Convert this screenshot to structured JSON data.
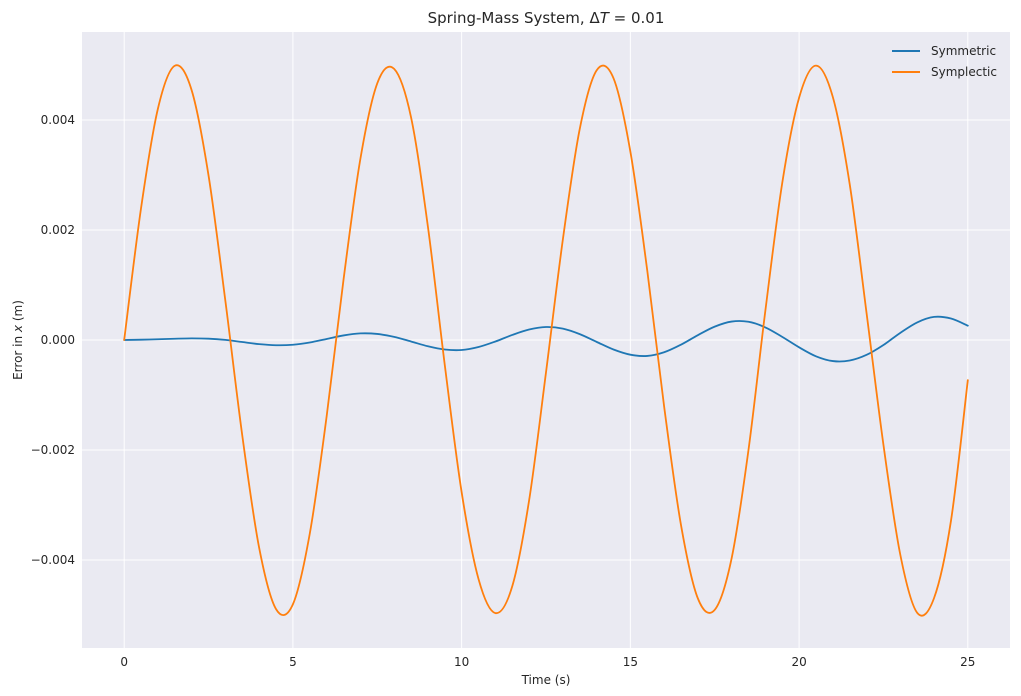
{
  "chart_data": {
    "type": "line",
    "title": "Spring-Mass System, ΔT = 0.01",
    "title_parts": {
      "prefix": "Spring-Mass System, ",
      "delta": "Δ",
      "var": "T",
      "suffix": " = 0.01"
    },
    "xlabel": "Time (s)",
    "ylabel": "Error in x (m)",
    "ylabel_parts": {
      "prefix": "Error in ",
      "var": "x",
      "suffix": " (m)"
    },
    "xlim": [
      -1.25,
      26.25
    ],
    "ylim": [
      -0.0056,
      0.0056
    ],
    "xticks": [
      0,
      5,
      10,
      15,
      20,
      25
    ],
    "xtick_labels": [
      "0",
      "5",
      "10",
      "15",
      "20",
      "25"
    ],
    "yticks": [
      -0.004,
      -0.002,
      0.0,
      0.002,
      0.004
    ],
    "ytick_labels": [
      "−0.004",
      "−0.002",
      "0.000",
      "0.002",
      "0.004"
    ],
    "grid": true,
    "legend_position": "top-right",
    "background": "#eaeaf2",
    "grid_color": "#ffffff",
    "x": [
      0,
      0.5,
      1,
      1.5,
      2,
      2.5,
      3,
      3.5,
      4,
      4.5,
      5,
      5.5,
      6,
      6.5,
      7,
      7.5,
      8,
      8.5,
      9,
      9.5,
      10,
      10.5,
      11,
      11.5,
      12,
      12.5,
      13,
      13.5,
      14,
      14.5,
      15,
      15.5,
      16,
      16.5,
      17,
      17.5,
      18,
      18.5,
      19,
      19.5,
      20,
      20.5,
      21,
      21.5,
      22,
      22.5,
      23,
      23.5,
      24,
      24.5,
      25
    ],
    "series": [
      {
        "name": "Symmetric",
        "color": "#1f77b4",
        "values": [
          0.0,
          6e-06,
          1.4e-05,
          2.3e-05,
          2.9e-05,
          2.4e-05,
          2e-06,
          -3.7e-05,
          -7.5e-05,
          -9.5e-05,
          -8.6e-05,
          -4.5e-05,
          1.9e-05,
          8.3e-05,
          0.00012,
          0.00011,
          5.7e-05,
          -2.7e-05,
          -0.000114,
          -0.000173,
          -0.000182,
          -0.000127,
          -2.7e-05,
          9.2e-05,
          0.000191,
          0.000236,
          0.000207,
          0.000107,
          -3.4e-05,
          -0.000173,
          -0.000267,
          -0.00029,
          -0.000223,
          -8.5e-05,
          8.8e-05,
          0.000243,
          0.000335,
          0.000331,
          0.000229,
          5.7e-05,
          -0.000133,
          -0.000296,
          -0.000383,
          -0.000373,
          -0.00027,
          -9e-05,
          0.00013,
          0.00032,
          0.00042,
          0.00039,
          0.00026
        ]
      },
      {
        "name": "Symplectic",
        "color": "#ff7f0e",
        "values": [
          0.0,
          0.002397,
          0.004207,
          0.004986,
          0.00454,
          0.00299,
          0.000704,
          -0.001738,
          -0.003779,
          -0.004893,
          -0.004804,
          -0.00352,
          -0.001387,
          0.001098,
          0.003295,
          0.004668,
          0.004929,
          0.004051,
          0.002064,
          -0.000452,
          -0.002767,
          -0.004345,
          -0.004965,
          -0.004478,
          -0.002914,
          -0.000589,
          0.001829,
          0.003837,
          0.004902,
          0.00476,
          0.003426,
          0.001265,
          -0.001206,
          -0.003362,
          -0.004698,
          -0.004905,
          -0.003971,
          -0.002001,
          0.000531,
          0.002853,
          0.004405,
          0.004989,
          0.004417,
          0.002833,
          0.000487,
          -0.001907,
          -0.003907,
          -0.00496,
          -0.004691,
          -0.00329,
          -0.00073
        ]
      }
    ]
  }
}
